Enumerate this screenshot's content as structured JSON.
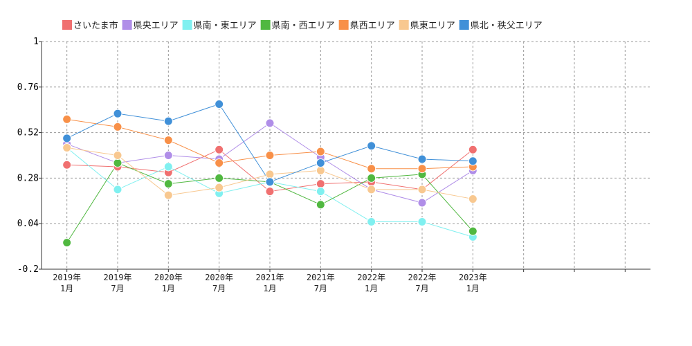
{
  "chart_data": {
    "type": "line",
    "categories": [
      "2019年\n1月",
      "2019年\n7月",
      "2020年\n1月",
      "2020年\n7月",
      "2021年\n1月",
      "2021年\n7月",
      "2022年\n1月",
      "2022年\n7月",
      "2023年\n1月",
      null,
      null,
      null
    ],
    "series": [
      {
        "name": "さいたま市",
        "color": "#f07070",
        "values": [
          0.35,
          0.34,
          0.31,
          0.43,
          0.21,
          0.25,
          0.26,
          0.22,
          0.43,
          null,
          null,
          null
        ]
      },
      {
        "name": "県央エリア",
        "color": "#b08ee8",
        "values": [
          0.46,
          0.36,
          0.4,
          0.38,
          0.57,
          0.39,
          0.22,
          0.15,
          0.32,
          null,
          null,
          null
        ]
      },
      {
        "name": "県南・東エリア",
        "color": "#80f0f0",
        "values": [
          0.44,
          0.22,
          0.34,
          0.2,
          0.26,
          0.21,
          0.05,
          0.05,
          -0.03,
          null,
          null,
          null
        ]
      },
      {
        "name": "県南・西エリア",
        "color": "#50b840",
        "values": [
          -0.06,
          0.36,
          0.25,
          0.28,
          0.26,
          0.14,
          0.28,
          0.3,
          0.0,
          null,
          null,
          null
        ]
      },
      {
        "name": "県西エリア",
        "color": "#f89048",
        "values": [
          0.59,
          0.55,
          0.48,
          0.36,
          0.4,
          0.42,
          0.33,
          0.33,
          0.34,
          null,
          null,
          null
        ]
      },
      {
        "name": "県東エリア",
        "color": "#f8c890",
        "values": [
          0.44,
          0.4,
          0.19,
          0.23,
          0.3,
          0.32,
          0.22,
          0.22,
          0.17,
          null,
          null,
          null
        ]
      },
      {
        "name": "県北・秩父エリア",
        "color": "#4090d8",
        "values": [
          0.49,
          0.62,
          0.58,
          0.67,
          0.26,
          0.36,
          0.45,
          0.38,
          0.37,
          null,
          null,
          null
        ]
      }
    ],
    "ylim": [
      -0.2,
      1
    ],
    "yticks": [
      -0.2,
      0.04,
      0.28,
      0.52,
      0.76,
      1
    ],
    "grid": true,
    "legend": "top"
  }
}
